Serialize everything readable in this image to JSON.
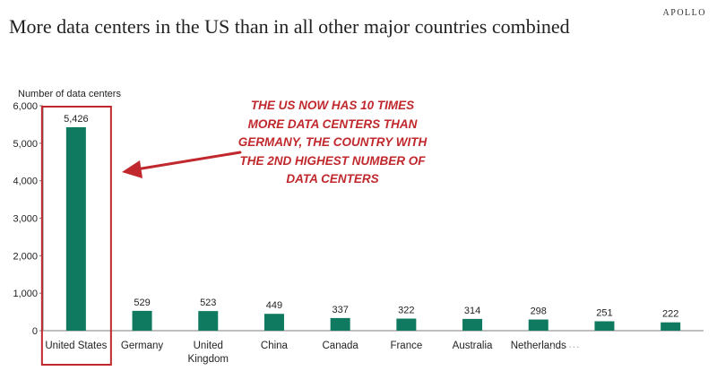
{
  "header": {
    "brand": "APOLLO",
    "title": "More data centers in the US than in all other major countries combined"
  },
  "annotation": {
    "text": "THE US NOW HAS 10 TIMES MORE DATA CENTERS THAN GERMANY, THE COUNTRY WITH THE 2ND HIGHEST NUMBER OF DATA CENTERS"
  },
  "watermark": "·········",
  "colors": {
    "bar": "#0f7a5f",
    "highlight": "#c0282d",
    "axis": "#7f7f7f"
  },
  "chart_data": {
    "type": "bar",
    "title": "More data centers in the US than in all other major countries combined",
    "ylabel": "Number of data centers",
    "xlabel": "",
    "ylim": [
      0,
      6000
    ],
    "yticks": [
      0,
      1000,
      2000,
      3000,
      4000,
      5000,
      6000
    ],
    "ytick_labels": [
      "0",
      "1,000",
      "2,000",
      "3,000",
      "4,000",
      "5,000",
      "6,000"
    ],
    "categories": [
      "United States",
      "Germany",
      "United Kingdom",
      "China",
      "Canada",
      "France",
      "Australia",
      "Netherlands",
      "",
      ""
    ],
    "values": [
      5426,
      529,
      523,
      449,
      337,
      322,
      314,
      298,
      251,
      222
    ],
    "value_labels": [
      "5,426",
      "529",
      "523",
      "449",
      "337",
      "322",
      "314",
      "298",
      "251",
      "222"
    ],
    "highlighted": "United States",
    "grid": false
  }
}
